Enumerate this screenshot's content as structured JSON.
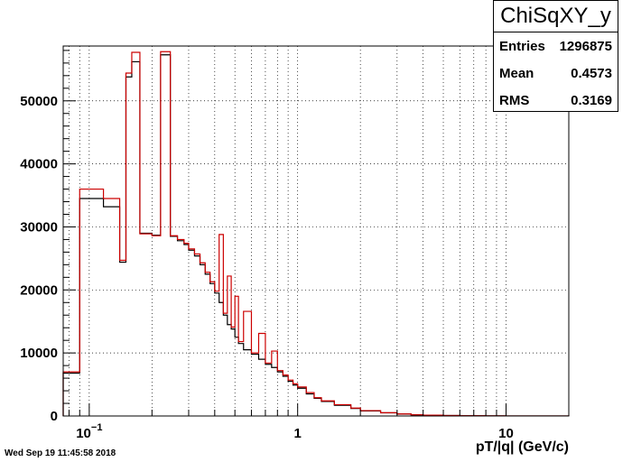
{
  "timestamp": "Wed Sep 19 11:45:58 2018",
  "stats": {
    "title": "ChiSqXY_y",
    "rows": [
      {
        "label": "Entries",
        "value": "1296875"
      },
      {
        "label": "Mean",
        "value": "0.4573"
      },
      {
        "label": "RMS",
        "value": "0.3169"
      }
    ]
  },
  "chart_data": {
    "type": "histogram",
    "title": "ChiSqXY_y",
    "xlabel": "pT/|q| (GeV/c)",
    "ylabel": "",
    "x_scale": "log",
    "xlim": [
      0.075,
      20
    ],
    "ylim": [
      0,
      58700
    ],
    "grid": true,
    "x_tick_labels": [
      {
        "value": 0.1,
        "base": "10",
        "exp": "−1"
      },
      {
        "value": 1,
        "text": "1"
      },
      {
        "value": 10,
        "text": "10"
      }
    ],
    "y_tick_labels": [
      0,
      10000,
      20000,
      30000,
      40000,
      50000
    ],
    "colors": {
      "series_black": "#000000",
      "series_red": "#cc0000",
      "grid": "#000000"
    },
    "series": [
      {
        "color": "#000000",
        "x": [
          0.075,
          0.09,
          0.117,
          0.14,
          0.15,
          0.16,
          0.175,
          0.2,
          0.22,
          0.245,
          0.265,
          0.285,
          0.3,
          0.32,
          0.34,
          0.36,
          0.38,
          0.4,
          0.42,
          0.44,
          0.46,
          0.48,
          0.5,
          0.52,
          0.55,
          0.6,
          0.65,
          0.7,
          0.75,
          0.8,
          0.85,
          0.9,
          0.95,
          1.0,
          1.1,
          1.2,
          1.3,
          1.5,
          1.8,
          2.0,
          2.5,
          3.0,
          3.5,
          4.0,
          5.0,
          6.0,
          8.0,
          10,
          20
        ],
        "values": [
          6800,
          34500,
          33200,
          24400,
          53800,
          56200,
          29000,
          28700,
          57300,
          28500,
          27800,
          27200,
          26300,
          25400,
          24000,
          22500,
          21000,
          19500,
          18000,
          16000,
          14500,
          13800,
          12500,
          11500,
          10500,
          9800,
          9000,
          8200,
          7700,
          7000,
          6300,
          5500,
          4900,
          4400,
          3500,
          2800,
          2300,
          1700,
          1200,
          800,
          500,
          300,
          180,
          120,
          70,
          40,
          20,
          10
        ]
      },
      {
        "color": "#cc0000",
        "x": [
          0.075,
          0.09,
          0.117,
          0.14,
          0.15,
          0.16,
          0.175,
          0.2,
          0.22,
          0.245,
          0.265,
          0.285,
          0.3,
          0.32,
          0.34,
          0.36,
          0.38,
          0.4,
          0.42,
          0.44,
          0.46,
          0.48,
          0.5,
          0.52,
          0.55,
          0.6,
          0.65,
          0.7,
          0.75,
          0.8,
          0.85,
          0.9,
          0.95,
          1.0,
          1.1,
          1.2,
          1.3,
          1.5,
          1.8,
          2.0,
          2.5,
          3.0,
          3.5,
          4.0,
          5.0,
          6.0,
          8.0,
          10,
          20
        ],
        "values": [
          7000,
          36000,
          34500,
          24700,
          54400,
          57700,
          28900,
          28600,
          57800,
          28600,
          28000,
          27400,
          26500,
          25700,
          24300,
          22800,
          21300,
          19800,
          28800,
          16300,
          22200,
          14100,
          19000,
          11800,
          16600,
          10000,
          13100,
          8400,
          10300,
          7200,
          6500,
          5700,
          5100,
          4600,
          3700,
          2900,
          2400,
          1800,
          1250,
          850,
          520,
          320,
          190,
          130,
          75,
          45,
          22,
          12
        ]
      }
    ]
  }
}
